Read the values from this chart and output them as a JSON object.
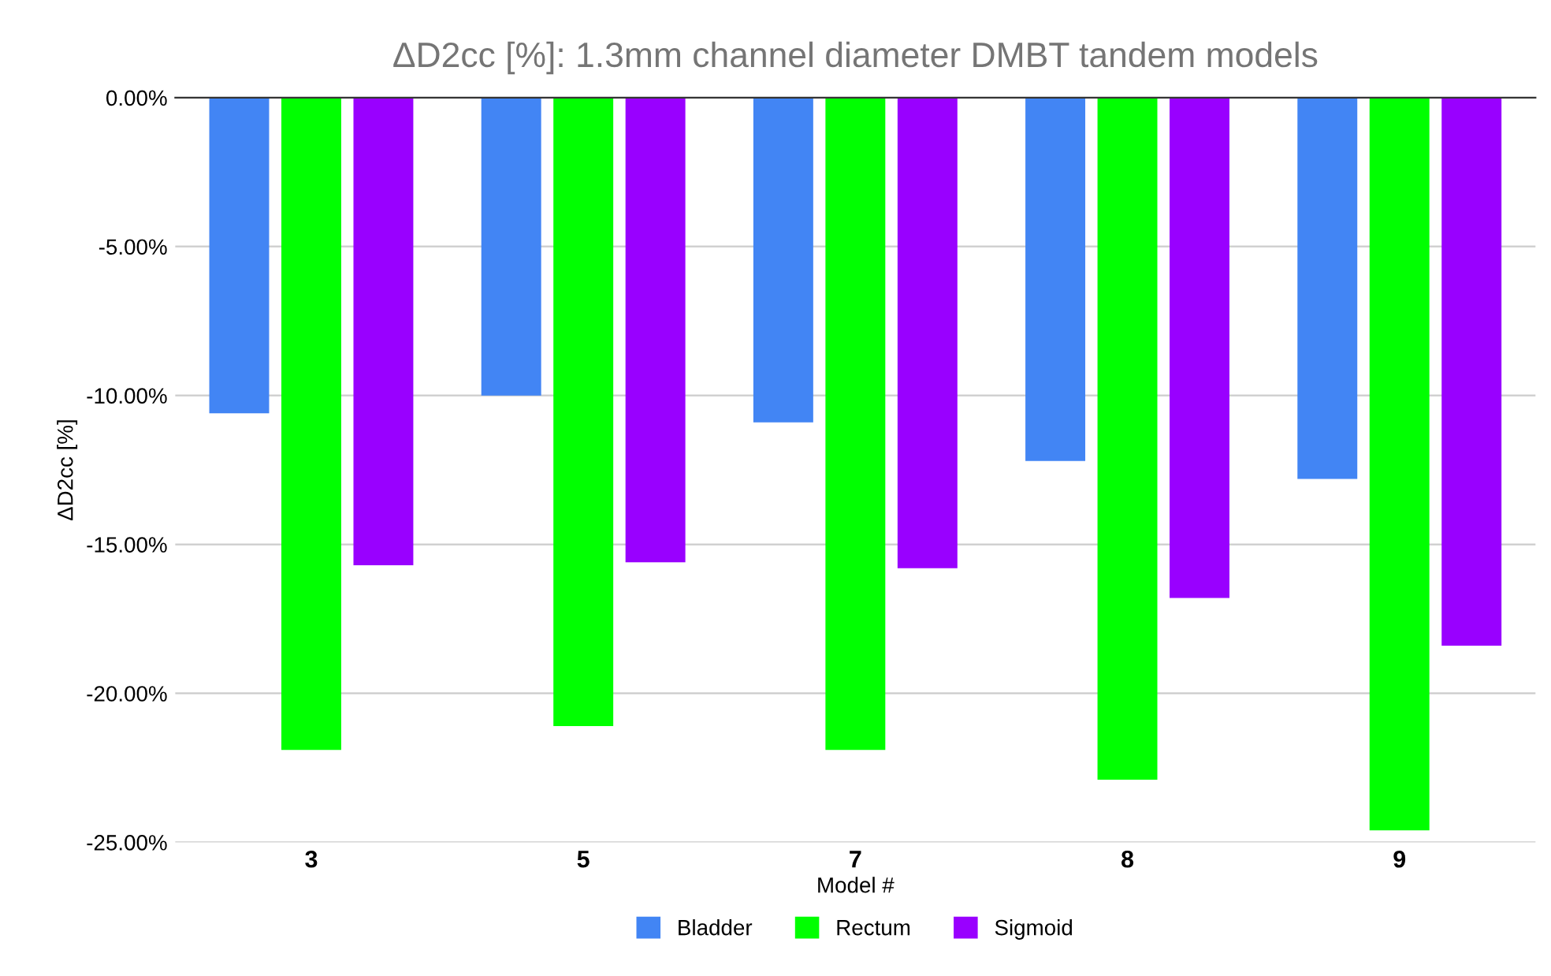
{
  "chart_data": {
    "type": "bar",
    "title": "ΔD2cc [%]: 1.3mm channel diameter DMBT tandem models",
    "xlabel": "Model #",
    "ylabel": "ΔD2cc [%]",
    "categories": [
      "3",
      "5",
      "7",
      "8",
      "9"
    ],
    "series": [
      {
        "name": "Bladder",
        "color": "#4285f4",
        "values": [
          -10.6,
          -10.0,
          -10.9,
          -12.2,
          -12.8
        ]
      },
      {
        "name": "Rectum",
        "color": "#00ff00",
        "values": [
          -21.9,
          -21.1,
          -21.9,
          -22.9,
          -24.6
        ]
      },
      {
        "name": "Sigmoid",
        "color": "#9900ff",
        "values": [
          -15.7,
          -15.6,
          -15.8,
          -16.8,
          -18.4
        ]
      }
    ],
    "ylim": [
      -25,
      0
    ],
    "yticks": [
      {
        "value": 0,
        "label": "0.00%"
      },
      {
        "value": -5,
        "label": "-5.00%"
      },
      {
        "value": -10,
        "label": "-10.00%"
      },
      {
        "value": -15,
        "label": "-15.00%"
      },
      {
        "value": -20,
        "label": "-20.00%"
      },
      {
        "value": -25,
        "label": "-25.00%"
      }
    ],
    "grid": "y",
    "legend": "bottom"
  }
}
